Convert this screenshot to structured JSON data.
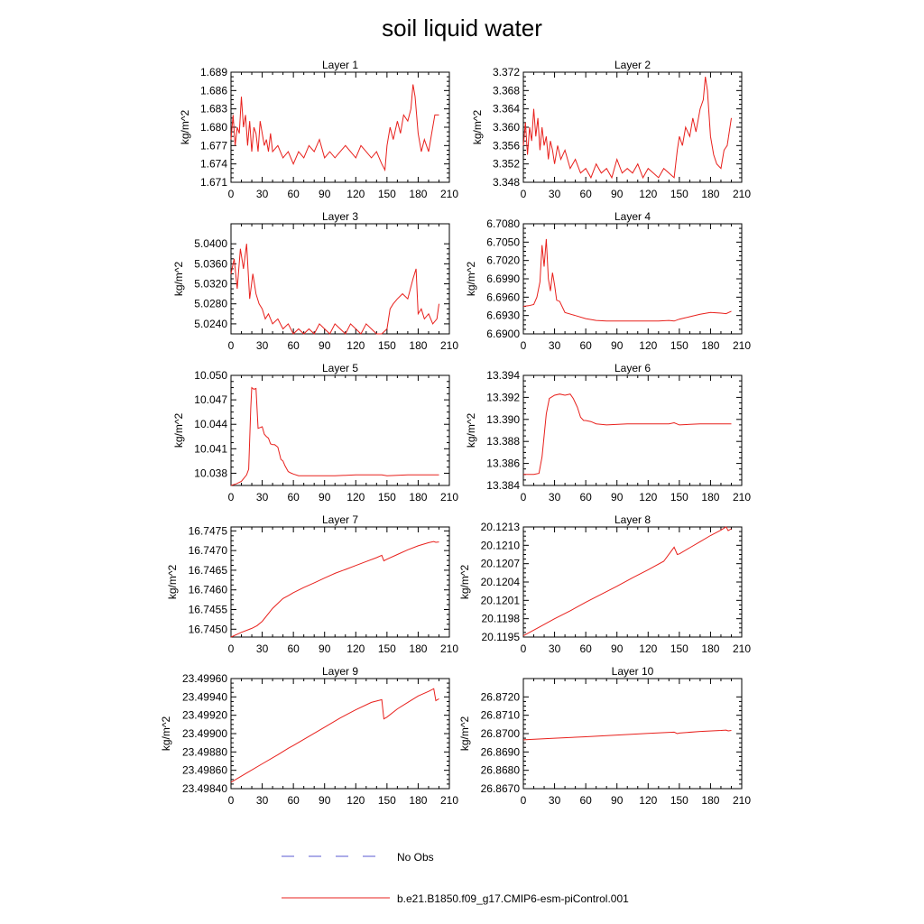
{
  "title": "soil liquid water",
  "legend": [
    {
      "label": "No Obs",
      "color": "#5a5ad2",
      "style": "dashed"
    },
    {
      "label": "b.e21.B1850.f09_g17.CMIP6-esm-piControl.001",
      "color": "#e8201c",
      "style": "solid"
    }
  ],
  "chart_data": [
    {
      "type": "line",
      "title": "Layer 1",
      "ylabel": "kg/m^2",
      "xlim": [
        0,
        210
      ],
      "xticks": [
        0,
        30,
        60,
        90,
        120,
        150,
        180,
        210
      ],
      "ylim": [
        1.671,
        1.689
      ],
      "yticks": [
        "1.671",
        "1.674",
        "1.677",
        "1.680",
        "1.683",
        "1.686",
        "1.689"
      ],
      "series": [
        {
          "color": "#e8201c",
          "x": [
            0,
            2,
            4,
            6,
            8,
            10,
            12,
            14,
            16,
            18,
            20,
            22,
            24,
            26,
            28,
            30,
            32,
            34,
            36,
            38,
            40,
            45,
            50,
            55,
            60,
            65,
            70,
            75,
            80,
            85,
            90,
            95,
            100,
            105,
            110,
            115,
            120,
            125,
            130,
            135,
            140,
            145,
            148,
            150,
            153,
            156,
            160,
            163,
            166,
            170,
            173,
            175,
            177,
            180,
            183,
            186,
            190,
            193,
            196,
            200
          ],
          "y": [
            1.678,
            1.682,
            1.677,
            1.68,
            1.679,
            1.685,
            1.68,
            1.682,
            1.677,
            1.681,
            1.676,
            1.68,
            1.679,
            1.676,
            1.681,
            1.679,
            1.677,
            1.678,
            1.676,
            1.679,
            1.676,
            1.677,
            1.675,
            1.676,
            1.674,
            1.676,
            1.675,
            1.677,
            1.676,
            1.678,
            1.675,
            1.676,
            1.675,
            1.676,
            1.677,
            1.676,
            1.675,
            1.677,
            1.676,
            1.675,
            1.676,
            1.674,
            1.673,
            1.677,
            1.68,
            1.678,
            1.681,
            1.679,
            1.682,
            1.681,
            1.683,
            1.687,
            1.685,
            1.679,
            1.676,
            1.678,
            1.676,
            1.679,
            1.682,
            1.682
          ]
        }
      ]
    },
    {
      "type": "line",
      "title": "Layer 2",
      "ylabel": "kg/m^2",
      "xlim": [
        0,
        210
      ],
      "xticks": [
        0,
        30,
        60,
        90,
        120,
        150,
        180,
        210
      ],
      "ylim": [
        3.348,
        3.372
      ],
      "yticks": [
        "3.348",
        "3.352",
        "3.356",
        "3.360",
        "3.364",
        "3.368",
        "3.372"
      ],
      "series": [
        {
          "color": "#e8201c",
          "x": [
            0,
            2,
            4,
            6,
            8,
            10,
            12,
            14,
            16,
            18,
            20,
            22,
            24,
            26,
            28,
            30,
            33,
            36,
            40,
            45,
            50,
            55,
            60,
            65,
            70,
            75,
            80,
            85,
            90,
            95,
            100,
            105,
            110,
            115,
            120,
            125,
            130,
            135,
            140,
            145,
            148,
            150,
            153,
            156,
            160,
            163,
            166,
            170,
            173,
            175,
            177,
            180,
            183,
            186,
            190,
            193,
            196,
            200
          ],
          "y": [
            3.356,
            3.361,
            3.354,
            3.36,
            3.357,
            3.364,
            3.358,
            3.362,
            3.355,
            3.36,
            3.356,
            3.358,
            3.353,
            3.357,
            3.355,
            3.352,
            3.356,
            3.353,
            3.355,
            3.351,
            3.353,
            3.35,
            3.351,
            3.349,
            3.352,
            3.35,
            3.351,
            3.349,
            3.353,
            3.35,
            3.351,
            3.35,
            3.352,
            3.349,
            3.351,
            3.35,
            3.349,
            3.351,
            3.35,
            3.349,
            3.355,
            3.358,
            3.356,
            3.36,
            3.358,
            3.362,
            3.359,
            3.364,
            3.366,
            3.371,
            3.368,
            3.358,
            3.354,
            3.352,
            3.351,
            3.355,
            3.356,
            3.362
          ]
        }
      ]
    },
    {
      "type": "line",
      "title": "Layer 3",
      "ylabel": "kg/m^2",
      "xlim": [
        0,
        210
      ],
      "xticks": [
        0,
        30,
        60,
        90,
        120,
        150,
        180,
        210
      ],
      "ylim": [
        5.022,
        5.044
      ],
      "yticks": [
        "5.0240",
        "5.0280",
        "5.0320",
        "5.0360",
        "5.0400"
      ],
      "series": [
        {
          "color": "#e8201c",
          "x": [
            0,
            3,
            6,
            9,
            12,
            15,
            18,
            21,
            24,
            27,
            30,
            33,
            36,
            40,
            45,
            50,
            55,
            60,
            65,
            70,
            75,
            80,
            85,
            90,
            95,
            100,
            105,
            110,
            115,
            120,
            125,
            130,
            135,
            140,
            145,
            150,
            153,
            156,
            160,
            165,
            170,
            175,
            178,
            180,
            183,
            186,
            190,
            194,
            198,
            200
          ],
          "y": [
            5.034,
            5.037,
            5.031,
            5.039,
            5.035,
            5.04,
            5.029,
            5.034,
            5.03,
            5.028,
            5.027,
            5.025,
            5.026,
            5.024,
            5.025,
            5.023,
            5.024,
            5.022,
            5.023,
            5.022,
            5.023,
            5.022,
            5.024,
            5.023,
            5.022,
            5.024,
            5.023,
            5.022,
            5.024,
            5.023,
            5.022,
            5.024,
            5.023,
            5.022,
            5.022,
            5.023,
            5.027,
            5.028,
            5.029,
            5.03,
            5.029,
            5.033,
            5.035,
            5.026,
            5.027,
            5.025,
            5.026,
            5.024,
            5.025,
            5.028
          ]
        }
      ]
    },
    {
      "type": "line",
      "title": "Layer 4",
      "ylabel": "kg/m^2",
      "xlim": [
        0,
        210
      ],
      "xticks": [
        0,
        30,
        60,
        90,
        120,
        150,
        180,
        210
      ],
      "ylim": [
        6.69,
        6.708
      ],
      "yticks": [
        "6.6900",
        "6.6930",
        "6.6960",
        "6.6990",
        "6.7020",
        "6.7050",
        "6.7080"
      ],
      "series": [
        {
          "color": "#e8201c",
          "x": [
            0,
            5,
            10,
            13,
            16,
            18,
            20,
            22,
            24,
            26,
            28,
            30,
            32,
            35,
            40,
            50,
            60,
            70,
            80,
            90,
            100,
            110,
            120,
            130,
            140,
            145,
            150,
            155,
            160,
            170,
            180,
            190,
            195,
            200
          ],
          "y": [
            6.6945,
            6.6946,
            6.6948,
            6.696,
            6.6985,
            6.7045,
            6.701,
            6.7055,
            6.699,
            6.697,
            6.7,
            6.698,
            6.6955,
            6.6953,
            6.6935,
            6.693,
            6.6925,
            6.6922,
            6.6921,
            6.6921,
            6.6921,
            6.6921,
            6.6921,
            6.6921,
            6.6922,
            6.6921,
            6.6924,
            6.6926,
            6.6928,
            6.6932,
            6.6935,
            6.6934,
            6.6933,
            6.6937
          ]
        }
      ]
    },
    {
      "type": "line",
      "title": "Layer 5",
      "ylabel": "kg/m^2",
      "xlim": [
        0,
        210
      ],
      "xticks": [
        0,
        30,
        60,
        90,
        120,
        150,
        180,
        210
      ],
      "ylim": [
        10.0365,
        10.05
      ],
      "yticks": [
        "10.038",
        "10.041",
        "10.044",
        "10.047",
        "10.050"
      ],
      "series": [
        {
          "color": "#e8201c",
          "x": [
            0,
            5,
            10,
            15,
            17,
            19,
            20,
            22,
            24,
            26,
            28,
            30,
            32,
            34,
            36,
            38,
            40,
            42,
            45,
            48,
            50,
            52,
            55,
            58,
            60,
            65,
            70,
            80,
            100,
            120,
            140,
            145,
            150,
            170,
            190,
            200
          ],
          "y": [
            10.0365,
            10.0367,
            10.037,
            10.0378,
            10.0385,
            10.046,
            10.0485,
            10.0483,
            10.0484,
            10.0435,
            10.0436,
            10.0437,
            10.0428,
            10.0425,
            10.0423,
            10.0416,
            10.0415,
            10.0415,
            10.0412,
            10.0397,
            10.0395,
            10.0389,
            10.0382,
            10.038,
            10.0379,
            10.0377,
            10.0377,
            10.0377,
            10.0377,
            10.0378,
            10.0378,
            10.0378,
            10.0377,
            10.0378,
            10.0378,
            10.0378
          ]
        }
      ]
    },
    {
      "type": "line",
      "title": "Layer 6",
      "ylabel": "kg/m^2",
      "xlim": [
        0,
        210
      ],
      "xticks": [
        0,
        30,
        60,
        90,
        120,
        150,
        180,
        210
      ],
      "ylim": [
        13.384,
        13.394
      ],
      "yticks": [
        "13.384",
        "13.386",
        "13.388",
        "13.390",
        "13.392",
        "13.394"
      ],
      "series": [
        {
          "color": "#e8201c",
          "x": [
            0,
            5,
            10,
            15,
            18,
            20,
            22,
            25,
            30,
            35,
            40,
            45,
            48,
            50,
            52,
            55,
            58,
            60,
            65,
            70,
            80,
            100,
            120,
            140,
            145,
            150,
            170,
            190,
            200
          ],
          "y": [
            13.385,
            13.385,
            13.385,
            13.3851,
            13.3866,
            13.3885,
            13.3905,
            13.3919,
            13.3922,
            13.3923,
            13.3922,
            13.3923,
            13.3919,
            13.3915,
            13.3911,
            13.3902,
            13.3899,
            13.3899,
            13.3898,
            13.3896,
            13.3895,
            13.3896,
            13.3896,
            13.3896,
            13.3897,
            13.3895,
            13.3896,
            13.3896,
            13.3896
          ]
        }
      ]
    },
    {
      "type": "line",
      "title": "Layer 7",
      "ylabel": "kg/m^2",
      "xlim": [
        0,
        210
      ],
      "xticks": [
        0,
        30,
        60,
        90,
        120,
        150,
        180,
        210
      ],
      "ylim": [
        16.7448,
        16.7476
      ],
      "yticks": [
        "16.7450",
        "16.7455",
        "16.7460",
        "16.7465",
        "16.7470",
        "16.7475"
      ],
      "series": [
        {
          "color": "#e8201c",
          "x": [
            0,
            10,
            20,
            25,
            30,
            40,
            50,
            55,
            60,
            70,
            80,
            90,
            100,
            110,
            120,
            130,
            140,
            145,
            147,
            150,
            160,
            170,
            180,
            190,
            195,
            197,
            200
          ],
          "y": [
            16.7448,
            16.74492,
            16.74502,
            16.74509,
            16.7452,
            16.74553,
            16.74578,
            16.74585,
            16.74593,
            16.74606,
            16.74618,
            16.7463,
            16.74642,
            16.74652,
            16.74662,
            16.74672,
            16.74682,
            16.74688,
            16.74674,
            16.74678,
            16.7469,
            16.74702,
            16.74712,
            16.7472,
            16.74723,
            16.74721,
            16.74722
          ]
        }
      ]
    },
    {
      "type": "line",
      "title": "Layer 8",
      "ylabel": "kg/m^2",
      "xlim": [
        0,
        210
      ],
      "xticks": [
        0,
        30,
        60,
        90,
        120,
        150,
        180,
        210
      ],
      "ylim": [
        20.1195,
        20.1213
      ],
      "yticks": [
        "20.1195",
        "20.1198",
        "20.1201",
        "20.1204",
        "20.1207",
        "20.1210",
        "20.1213"
      ],
      "series": [
        {
          "color": "#e8201c",
          "x": [
            0,
            15,
            30,
            45,
            60,
            75,
            90,
            105,
            120,
            135,
            145,
            148,
            150,
            160,
            170,
            180,
            190,
            195,
            197,
            200
          ],
          "y": [
            20.11952,
            20.11966,
            20.1198,
            20.11993,
            20.12007,
            20.1202,
            20.12033,
            20.12047,
            20.1206,
            20.12074,
            20.12097,
            20.12085,
            20.12086,
            20.12096,
            20.12106,
            20.12116,
            20.12125,
            20.1213,
            20.12124,
            20.12127
          ]
        }
      ]
    },
    {
      "type": "line",
      "title": "Layer 9",
      "ylabel": "kg/m^2",
      "xlim": [
        0,
        210
      ],
      "xticks": [
        0,
        30,
        60,
        90,
        120,
        150,
        180,
        210
      ],
      "ylim": [
        23.4984,
        23.4996
      ],
      "yticks": [
        "23.49840",
        "23.49860",
        "23.49880",
        "23.49900",
        "23.49920",
        "23.49940",
        "23.49960"
      ],
      "series": [
        {
          "color": "#e8201c",
          "x": [
            0,
            15,
            30,
            45,
            55,
            60,
            75,
            90,
            105,
            120,
            135,
            145,
            147,
            150,
            160,
            170,
            180,
            190,
            195,
            197,
            200
          ],
          "y": [
            23.49847,
            23.49857,
            23.49867,
            23.49877,
            23.49884,
            23.49887,
            23.49897,
            23.49907,
            23.49917,
            23.49926,
            23.49934,
            23.49937,
            23.49916,
            23.49918,
            23.49927,
            23.49934,
            23.49941,
            23.49946,
            23.49949,
            23.49936,
            23.49938
          ]
        }
      ]
    },
    {
      "type": "line",
      "title": "Layer 10",
      "ylabel": "kg/m^2",
      "xlim": [
        0,
        210
      ],
      "xticks": [
        0,
        30,
        60,
        90,
        120,
        150,
        180,
        210
      ],
      "ylim": [
        26.867,
        26.873
      ],
      "yticks": [
        "26.8670",
        "26.8680",
        "26.8690",
        "26.8700",
        "26.8710",
        "26.8720"
      ],
      "series": [
        {
          "color": "#e8201c",
          "x": [
            0,
            30,
            60,
            90,
            120,
            145,
            148,
            150,
            170,
            190,
            195,
            197,
            200
          ],
          "y": [
            26.86966,
            26.86975,
            26.86983,
            26.86992,
            26.87001,
            26.87008,
            26.87,
            26.87003,
            26.87012,
            26.87017,
            26.87019,
            26.87015,
            26.87017
          ]
        }
      ]
    }
  ]
}
